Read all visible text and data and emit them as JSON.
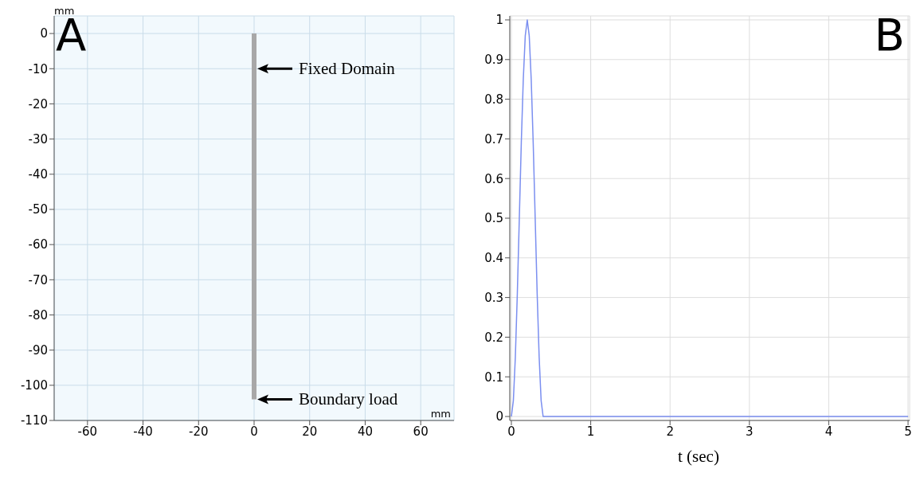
{
  "chart_data": [
    {
      "type": "line",
      "title": "A",
      "xlabel": "mm",
      "ylabel": "mm",
      "xlim": [
        -72,
        72
      ],
      "ylim": [
        -110,
        5
      ],
      "xticks": [
        -60,
        -40,
        -20,
        0,
        20,
        40,
        60
      ],
      "yticks": [
        0,
        -10,
        -20,
        -30,
        -40,
        -50,
        -60,
        -70,
        -80,
        -90,
        -100,
        -110
      ],
      "grid": true,
      "marker": "none",
      "series": [
        {
          "color": "#a8a8a8",
          "x": [
            0,
            0
          ],
          "values": [
            0,
            -104
          ]
        }
      ],
      "annotations": [
        {
          "text": "Fixed Domain",
          "x": 0,
          "y": -10
        },
        {
          "text": "Boundary load",
          "x": 0,
          "y": -104
        }
      ]
    },
    {
      "type": "line",
      "title": "B",
      "xlabel": "t (sec)",
      "xlim": [
        -0.02,
        5.02
      ],
      "ylim": [
        -0.01,
        1.01
      ],
      "xticks": [
        0,
        1,
        2,
        3,
        4,
        5
      ],
      "yticks": [
        0,
        0.1,
        0.2,
        0.3,
        0.4,
        0.5,
        0.6,
        0.7,
        0.8,
        0.9,
        1
      ],
      "grid": true,
      "marker": "none",
      "series": [
        {
          "color": "#7b8ff0",
          "x": [
            0,
            0.025,
            0.05,
            0.075,
            0.1,
            0.125,
            0.15,
            0.175,
            0.2,
            0.225,
            0.25,
            0.275,
            0.3,
            0.325,
            0.35,
            0.375,
            0.4,
            5
          ],
          "values": [
            0,
            0.04,
            0.15,
            0.31,
            0.5,
            0.69,
            0.85,
            0.96,
            1,
            0.96,
            0.85,
            0.69,
            0.5,
            0.31,
            0.15,
            0.04,
            0,
            0
          ]
        }
      ]
    }
  ]
}
